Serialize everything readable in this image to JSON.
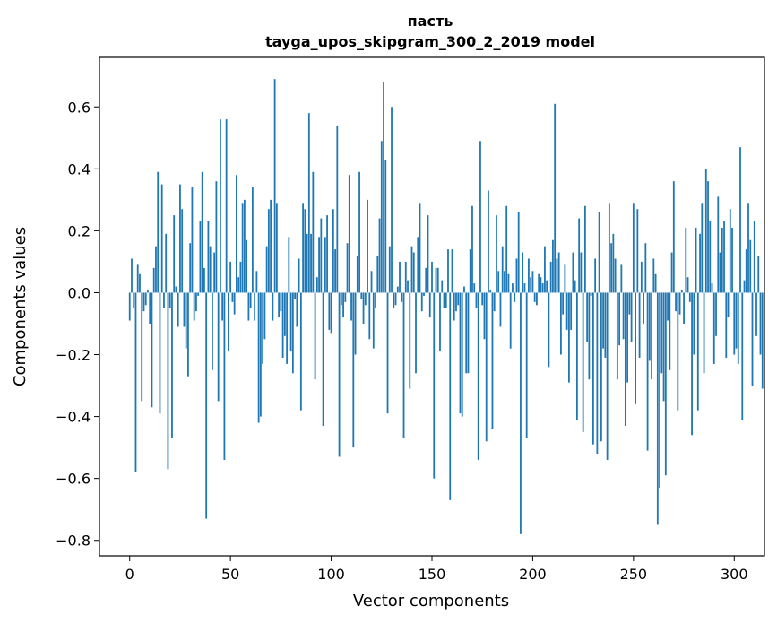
{
  "chart_data": {
    "type": "bar",
    "title": "пасть",
    "subtitle": "tayga_upos_skipgram_300_2_2019 model",
    "xlabel": "Vector components",
    "ylabel": "Components values",
    "xlim": [
      -15,
      315
    ],
    "ylim": [
      -0.85,
      0.76
    ],
    "xticks": [
      0,
      50,
      100,
      150,
      200,
      250,
      300
    ],
    "yticks": [
      -0.8,
      -0.6,
      -0.4,
      -0.2,
      0.0,
      0.2,
      0.4,
      0.6
    ],
    "ytick_labels": [
      "−0.8",
      "−0.6",
      "−0.4",
      "−0.2",
      "0.0",
      "0.2",
      "0.4",
      "0.6"
    ],
    "xtick_labels": [
      "0",
      "50",
      "100",
      "150",
      "200",
      "250",
      "300"
    ],
    "bar_color": "#1f77b4",
    "grid": false,
    "values": [
      -0.09,
      0.11,
      -0.05,
      -0.58,
      0.09,
      0.06,
      -0.35,
      -0.06,
      -0.04,
      0.01,
      -0.1,
      -0.37,
      0.08,
      0.15,
      0.39,
      -0.39,
      0.35,
      -0.05,
      0.19,
      -0.57,
      -0.05,
      -0.47,
      0.25,
      0.02,
      -0.11,
      0.35,
      0.27,
      -0.11,
      -0.18,
      -0.27,
      0.16,
      0.34,
      -0.09,
      -0.06,
      -0.01,
      0.23,
      0.39,
      0.08,
      -0.73,
      0.23,
      0.15,
      -0.25,
      0.13,
      0.36,
      -0.35,
      0.56,
      -0.09,
      -0.54,
      0.56,
      -0.19,
      0.1,
      -0.03,
      -0.07,
      0.38,
      0.05,
      0.1,
      0.29,
      0.3,
      0.17,
      -0.09,
      -0.05,
      0.34,
      -0.09,
      0.07,
      -0.42,
      -0.4,
      -0.23,
      -0.15,
      0.15,
      0.27,
      0.3,
      -0.09,
      0.69,
      0.29,
      -0.08,
      -0.06,
      -0.21,
      -0.14,
      -0.23,
      0.18,
      -0.19,
      -0.26,
      -0.02,
      -0.11,
      0.11,
      -0.38,
      0.29,
      0.27,
      0.19,
      0.58,
      0.19,
      0.39,
      -0.28,
      0.05,
      0.18,
      0.24,
      -0.43,
      0.18,
      0.25,
      -0.12,
      -0.13,
      0.27,
      0.14,
      0.54,
      -0.53,
      -0.04,
      -0.08,
      -0.03,
      0.16,
      0.38,
      -0.09,
      -0.5,
      -0.2,
      0.12,
      0.39,
      -0.02,
      -0.1,
      -0.04,
      0.3,
      -0.15,
      0.07,
      -0.18,
      -0.05,
      0.12,
      0.24,
      0.49,
      0.68,
      0.43,
      -0.39,
      0.15,
      0.6,
      -0.05,
      -0.04,
      0.02,
      0.1,
      -0.03,
      -0.47,
      0.1,
      0.04,
      -0.31,
      0.15,
      0.13,
      -0.26,
      0.18,
      0.29,
      -0.06,
      -0.01,
      0.08,
      0.25,
      -0.08,
      0.1,
      -0.6,
      0.08,
      0.08,
      -0.19,
      0.04,
      -0.05,
      -0.05,
      0.14,
      -0.67,
      0.14,
      -0.09,
      -0.06,
      -0.04,
      -0.39,
      -0.4,
      0.02,
      -0.26,
      -0.26,
      0.14,
      0.28,
      0.03,
      -0.05,
      -0.54,
      0.49,
      -0.04,
      -0.15,
      -0.48,
      0.33,
      0.01,
      -0.44,
      -0.06,
      0.25,
      0.07,
      -0.11,
      0.15,
      0.07,
      0.28,
      0.06,
      -0.18,
      0.03,
      -0.03,
      0.11,
      0.26,
      -0.78,
      0.13,
      0.03,
      -0.47,
      0.11,
      0.05,
      0.07,
      -0.03,
      -0.04,
      0.06,
      0.05,
      0.03,
      0.15,
      0.04,
      -0.24,
      0.1,
      0.17,
      0.61,
      0.11,
      0.13,
      -0.2,
      -0.07,
      0.09,
      -0.12,
      -0.29,
      -0.12,
      0.13,
      0.04,
      -0.41,
      0.24,
      0.13,
      -0.45,
      0.28,
      -0.16,
      -0.28,
      -0.01,
      -0.49,
      0.11,
      -0.52,
      0.26,
      -0.48,
      -0.18,
      -0.21,
      -0.54,
      0.29,
      0.16,
      0.19,
      0.11,
      -0.28,
      -0.17,
      0.09,
      -0.15,
      -0.43,
      -0.29,
      -0.07,
      -0.16,
      0.29,
      -0.36,
      0.27,
      -0.21,
      0.1,
      -0.1,
      0.16,
      -0.51,
      -0.22,
      -0.28,
      0.11,
      0.06,
      -0.75,
      -0.63,
      -0.26,
      -0.35,
      -0.59,
      -0.09,
      -0.25,
      0.13,
      0.36,
      -0.06,
      -0.38,
      -0.07,
      0.01,
      -0.1,
      0.21,
      0.05,
      -0.03,
      -0.46,
      -0.2,
      0.21,
      -0.38,
      0.19,
      0.29,
      -0.26,
      0.4,
      0.36,
      0.23,
      0.03,
      -0.23,
      -0.14,
      0.31,
      0.13,
      0.21,
      0.23,
      -0.21,
      -0.08,
      0.27,
      0.21,
      -0.2,
      -0.18,
      -0.23,
      0.47,
      -0.41,
      0.04,
      0.14,
      0.29,
      0.17,
      -0.3,
      0.23,
      -0.14,
      0.12,
      -0.2,
      -0.31
    ]
  }
}
